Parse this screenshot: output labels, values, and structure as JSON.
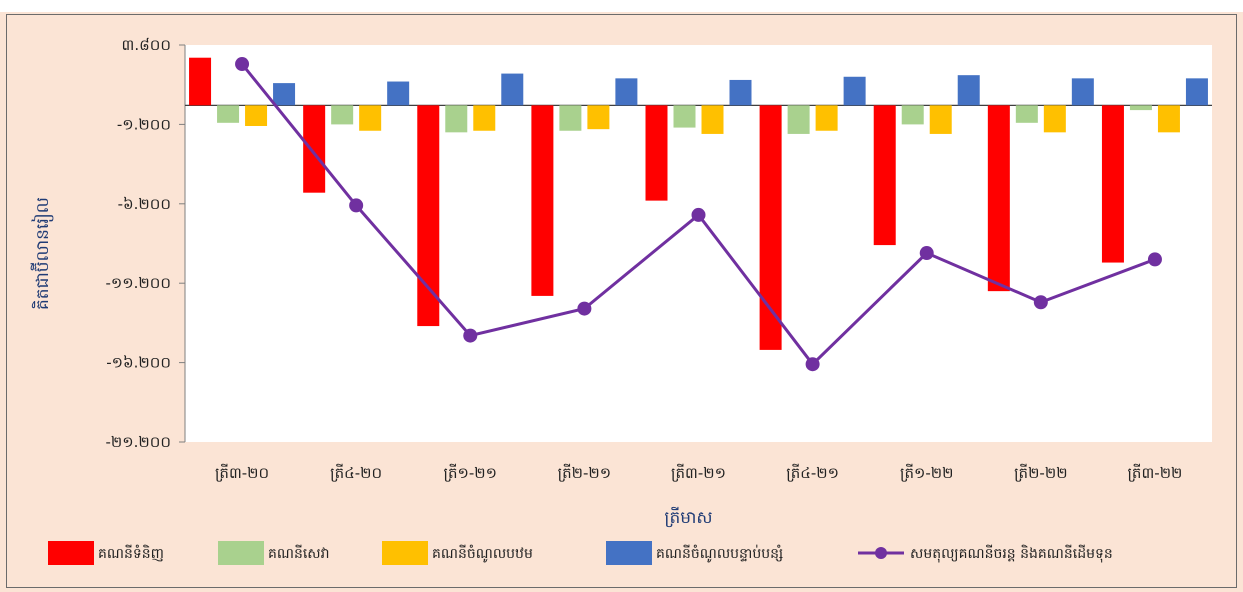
{
  "chart_data": {
    "type": "bar",
    "title": "",
    "xlabel": "ត្រីមាស",
    "ylabel": "គិតជាប៊ីលានរៀល",
    "ylim": [
      -21200,
      3800
    ],
    "yticks": [
      3800,
      -1200,
      -6200,
      -11200,
      -16200,
      -21200
    ],
    "ytick_labels": [
      "៣.៨០០",
      "-១.២០០",
      "-៦.២០០",
      "-១១.២០០",
      "-១៦.២០០",
      "-២១.២០០"
    ],
    "categories": [
      "ត្រី៣-២០",
      "ត្រី៤-២០",
      "ត្រី១-២១",
      "ត្រី២-២១",
      "ត្រី៣-២១",
      "ត្រី៤-២១",
      "ត្រី១-២២",
      "ត្រី២-២២",
      "ត្រី៣-២២"
    ],
    "series": [
      {
        "name": "គណនីទំនិញ",
        "kind": "bar",
        "color": "#ff0000",
        "values": [
          3000,
          -5500,
          -13900,
          -12000,
          -6000,
          -15400,
          -8800,
          -11700,
          -9900
        ]
      },
      {
        "name": "គណនីសេវា",
        "kind": "bar",
        "color": "#a9d18e",
        "values": [
          -1100,
          -1200,
          -1700,
          -1600,
          -1400,
          -1800,
          -1200,
          -1100,
          -300
        ]
      },
      {
        "name": "គណនីចំណូលបឋម",
        "kind": "bar",
        "color": "#ffc000",
        "values": [
          -1300,
          -1600,
          -1600,
          -1500,
          -1800,
          -1600,
          -1800,
          -1700,
          -1700
        ]
      },
      {
        "name": "គណនីចំណូលបន្ទាប់បន្សំ",
        "kind": "bar",
        "color": "#4472c4",
        "values": [
          1400,
          1500,
          2000,
          1700,
          1600,
          1800,
          1900,
          1700,
          1700
        ]
      },
      {
        "name": "សមតុល្យគណនីចរន្ត និងគណនីដើមទុន",
        "kind": "line",
        "color": "#7030a0",
        "values": [
          2600,
          -6300,
          -14500,
          -12800,
          -6900,
          -16300,
          -9300,
          -12400,
          -9700
        ]
      }
    ],
    "grid": false,
    "legend": "bottom"
  },
  "colors": {
    "page_bg": "#fbe4d5",
    "plot_bg": "#ffffff"
  }
}
